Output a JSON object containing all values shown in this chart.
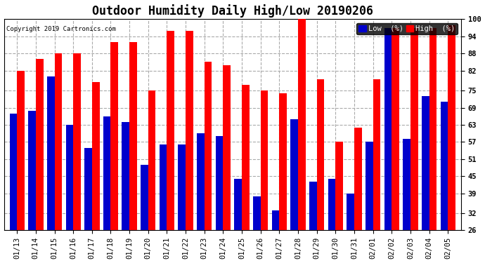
{
  "title": "Outdoor Humidity Daily High/Low 20190206",
  "copyright": "Copyright 2019 Cartronics.com",
  "legend_low_label": "Low  (%)",
  "legend_high_label": "High  (%)",
  "dates": [
    "01/13",
    "01/14",
    "01/15",
    "01/16",
    "01/17",
    "01/18",
    "01/19",
    "01/20",
    "01/21",
    "01/22",
    "01/23",
    "01/24",
    "01/25",
    "01/26",
    "01/27",
    "01/28",
    "01/29",
    "01/30",
    "01/31",
    "02/01",
    "02/02",
    "02/03",
    "02/04",
    "02/05"
  ],
  "high": [
    82,
    86,
    88,
    88,
    78,
    92,
    92,
    75,
    96,
    96,
    85,
    84,
    77,
    75,
    74,
    100,
    79,
    57,
    62,
    79,
    97,
    97,
    97,
    98
  ],
  "low": [
    67,
    68,
    80,
    63,
    55,
    66,
    64,
    49,
    56,
    56,
    60,
    59,
    44,
    38,
    33,
    65,
    43,
    44,
    39,
    57,
    97,
    58,
    73,
    71
  ],
  "high_color": "#ff0000",
  "low_color": "#0000cc",
  "bg_color": "#ffffff",
  "plot_bg_color": "#ffffff",
  "grid_color": "#aaaaaa",
  "ylim_min": 26,
  "ylim_max": 100,
  "yticks": [
    26,
    32,
    39,
    45,
    51,
    57,
    63,
    69,
    75,
    82,
    88,
    94,
    100
  ],
  "bar_width": 0.4,
  "title_fontsize": 12,
  "tick_fontsize": 7.5,
  "legend_fontsize": 7.5
}
